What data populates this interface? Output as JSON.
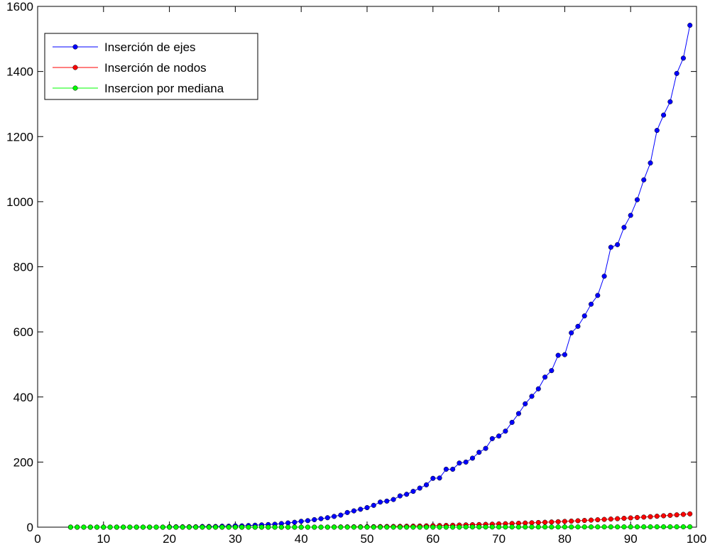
{
  "chart_data": {
    "type": "line",
    "xlim": [
      0,
      100
    ],
    "ylim": [
      0,
      1600
    ],
    "xticks": [
      0,
      10,
      20,
      30,
      40,
      50,
      60,
      70,
      80,
      90,
      100
    ],
    "yticks": [
      0,
      200,
      400,
      600,
      800,
      1000,
      1200,
      1400,
      1600
    ],
    "xtick_labels": [
      "0",
      "10",
      "20",
      "30",
      "40",
      "50",
      "60",
      "70",
      "80",
      "90",
      "100"
    ],
    "ytick_labels": [
      "0",
      "200",
      "400",
      "600",
      "800",
      "1000",
      "1200",
      "1400",
      "1600"
    ],
    "grid": false,
    "legend_position": "top-left",
    "series": [
      {
        "name": "Inserción de ejes",
        "color": "#0000ff",
        "x": [
          5,
          6,
          7,
          8,
          9,
          10,
          11,
          12,
          13,
          14,
          15,
          16,
          17,
          18,
          19,
          20,
          21,
          22,
          23,
          24,
          25,
          26,
          27,
          28,
          29,
          30,
          31,
          32,
          33,
          34,
          35,
          36,
          37,
          38,
          39,
          40,
          41,
          42,
          43,
          44,
          45,
          46,
          47,
          48,
          49,
          50,
          51,
          52,
          53,
          54,
          55,
          56,
          57,
          58,
          59,
          60,
          61,
          62,
          63,
          64,
          65,
          66,
          67,
          68,
          69,
          70,
          71,
          72,
          73,
          74,
          75,
          76,
          77,
          78,
          79,
          80,
          81,
          82,
          83,
          84,
          85,
          86,
          87,
          88,
          89,
          90,
          91,
          92,
          93,
          94,
          95,
          96,
          97,
          98,
          99
        ],
        "y": [
          0,
          0,
          0,
          0,
          0,
          0,
          0,
          0,
          0,
          0,
          0,
          0,
          0,
          0,
          0,
          1,
          1,
          1,
          1,
          1,
          2,
          2,
          2,
          3,
          3,
          4,
          4,
          5,
          6,
          7,
          8,
          9,
          11,
          13,
          15,
          18,
          20,
          23,
          26,
          29,
          33,
          37,
          45,
          50,
          55,
          60,
          67,
          77,
          80,
          85,
          96,
          101,
          110,
          120,
          130,
          150,
          151,
          178,
          178,
          197,
          200,
          212,
          230,
          242,
          272,
          280,
          295,
          322,
          349,
          379,
          402,
          425,
          461,
          481,
          528,
          530,
          597,
          617,
          649,
          685,
          712,
          771,
          860,
          868,
          921,
          958,
          1006,
          1067,
          1119,
          1219,
          1266,
          1307,
          1394,
          1441,
          1542
        ]
      },
      {
        "name": "Inserción de nodos",
        "color": "#ff0000",
        "x": [
          5,
          6,
          7,
          8,
          9,
          10,
          11,
          12,
          13,
          14,
          15,
          16,
          17,
          18,
          19,
          20,
          21,
          22,
          23,
          24,
          25,
          26,
          27,
          28,
          29,
          30,
          31,
          32,
          33,
          34,
          35,
          36,
          37,
          38,
          39,
          40,
          41,
          42,
          43,
          44,
          45,
          46,
          47,
          48,
          49,
          50,
          51,
          52,
          53,
          54,
          55,
          56,
          57,
          58,
          59,
          60,
          61,
          62,
          63,
          64,
          65,
          66,
          67,
          68,
          69,
          70,
          71,
          72,
          73,
          74,
          75,
          76,
          77,
          78,
          79,
          80,
          81,
          82,
          83,
          84,
          85,
          86,
          87,
          88,
          89,
          90,
          91,
          92,
          93,
          94,
          95,
          96,
          97,
          98,
          99
        ],
        "y": [
          0,
          0,
          0,
          0,
          0,
          0,
          0,
          0,
          0,
          0,
          0,
          0,
          0,
          0,
          0,
          0,
          0,
          0,
          0,
          0,
          0,
          0,
          0,
          0,
          0,
          0,
          0,
          0,
          0,
          0,
          0,
          0,
          0,
          0,
          0,
          0,
          0,
          0,
          0,
          0,
          0.5,
          0.6,
          0.8,
          1,
          1,
          1.2,
          1.4,
          1.7,
          2,
          2.2,
          2.5,
          2.9,
          3.2,
          3.6,
          4,
          4.5,
          5,
          5.4,
          5.9,
          6.4,
          7,
          7.5,
          8,
          8.6,
          9.2,
          10,
          10.6,
          11.3,
          12,
          12.7,
          13.5,
          14.3,
          15,
          15.9,
          16.8,
          17.7,
          18.6,
          19.6,
          20.6,
          21.6,
          22.7,
          23.8,
          24.9,
          26,
          27.2,
          28.4,
          29.7,
          30.9,
          32.2,
          33.6,
          34.9,
          36.3,
          37.8,
          39.3,
          40.8
        ]
      },
      {
        "name": "Insercion por mediana",
        "color": "#00ff00",
        "x": [
          5,
          6,
          7,
          8,
          9,
          10,
          11,
          12,
          13,
          14,
          15,
          16,
          17,
          18,
          19,
          20,
          21,
          22,
          23,
          24,
          25,
          26,
          27,
          28,
          29,
          30,
          31,
          32,
          33,
          34,
          35,
          36,
          37,
          38,
          39,
          40,
          41,
          42,
          43,
          44,
          45,
          46,
          47,
          48,
          49,
          50,
          51,
          52,
          53,
          54,
          55,
          56,
          57,
          58,
          59,
          60,
          61,
          62,
          63,
          64,
          65,
          66,
          67,
          68,
          69,
          70,
          71,
          72,
          73,
          74,
          75,
          76,
          77,
          78,
          79,
          80,
          81,
          82,
          83,
          84,
          85,
          86,
          87,
          88,
          89,
          90,
          91,
          92,
          93,
          94,
          95,
          96,
          97,
          98,
          99
        ],
        "y": [
          0,
          0,
          0,
          0,
          0,
          0,
          0,
          0,
          0,
          0,
          0,
          0,
          0,
          0,
          0,
          0,
          0,
          0,
          0,
          0,
          0,
          0,
          0,
          0,
          0,
          0,
          0,
          0,
          0,
          0,
          0,
          0,
          0,
          0,
          0,
          0,
          0,
          0,
          0,
          0,
          0,
          0,
          0,
          0,
          0,
          0,
          0,
          0,
          0,
          0,
          0,
          0,
          0,
          0,
          0,
          0,
          0,
          0,
          0,
          0,
          0.5,
          0.5,
          0.5,
          0.5,
          0.5,
          0.5,
          0.5,
          0.5,
          0.5,
          0.5,
          0.6,
          0.6,
          0.6,
          0.6,
          0.6,
          0.7,
          0.7,
          0.7,
          0.7,
          0.7,
          0.8,
          0.8,
          0.8,
          0.8,
          0.8,
          0.9,
          0.9,
          0.9,
          0.9,
          1,
          1,
          1,
          1,
          1,
          1
        ]
      }
    ]
  }
}
